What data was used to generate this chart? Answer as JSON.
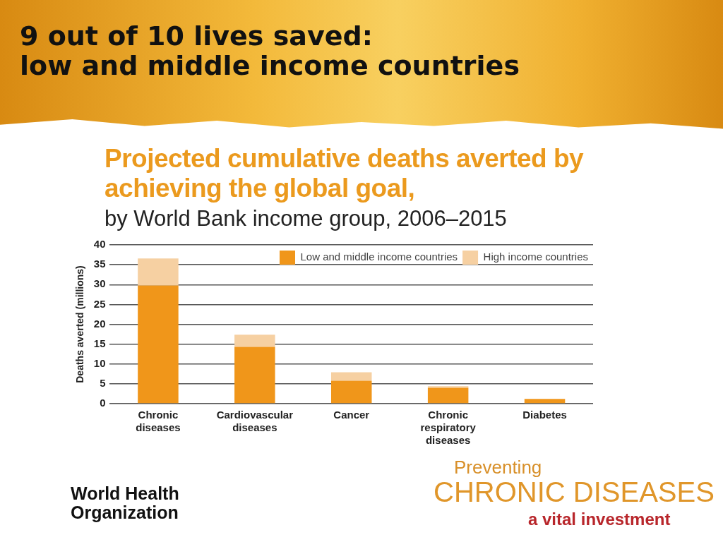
{
  "chart_data": {
    "type": "bar",
    "title": "Projected cumulative deaths averted by achieving the global goal,",
    "subtitle": "by World Bank income group, 2006–2015",
    "ylabel": "Deaths averted (millions)",
    "categories": [
      "Chronic diseases",
      "Cardiovascular diseases",
      "Cancer",
      "Chronic respiratory diseases",
      "Diabetes"
    ],
    "series": [
      {
        "name": "Low and middle income countries",
        "color": "#f0961a",
        "values": [
          29.8,
          14.3,
          5.8,
          4.0,
          1.2
        ]
      },
      {
        "name": "High income countries",
        "color": "#f6d0a2",
        "values": [
          6.8,
          3.1,
          2.1,
          0.4,
          0
        ]
      }
    ],
    "stacked": true,
    "ylim": [
      0,
      40
    ],
    "yticks": [
      0,
      5,
      10,
      15,
      20,
      25,
      30,
      35,
      40
    ],
    "grid": "y",
    "legend": "top right",
    "annotations": [
      "9 out of 10 lives saved:\nlow and middle income countries",
      "World Health\nOrganization",
      "Preventing",
      "CHRONIC DISEASES",
      "a vital investment"
    ]
  }
}
